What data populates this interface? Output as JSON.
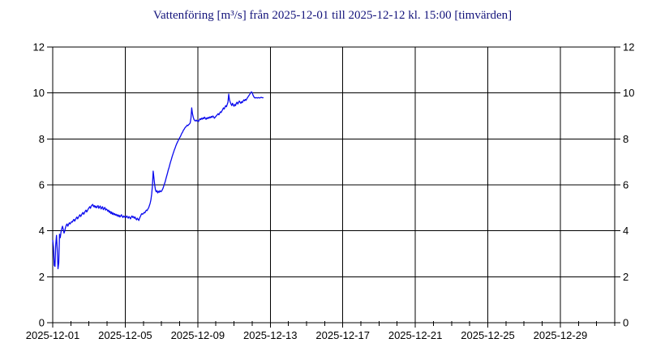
{
  "page": {
    "background": "#ffffff"
  },
  "chart_data": {
    "type": "line",
    "title": "Vattenföring [m³/s] från 2025-12-01 till 2025-12-12 kl. 15:00 [timvärden]",
    "title_color": "#13137b",
    "line_color": "#0b0bee",
    "grid": true,
    "grid_color": "#000000",
    "legend": "none",
    "x_axis": {
      "start_date": "2025-12-01",
      "total_days": 31,
      "major_tick_every_days": 4,
      "minor_tick_every_days": 1,
      "tick_labels": [
        "2025-12-01",
        "2025-12-05",
        "2025-12-09",
        "2025-12-13",
        "2025-12-17",
        "2025-12-21",
        "2025-12-25",
        "2025-12-29"
      ]
    },
    "y_axis": {
      "min": 0,
      "max": 12,
      "tick_step": 2,
      "tick_labels": [
        "0",
        "2",
        "4",
        "6",
        "8",
        "10",
        "12"
      ],
      "label_sides": "both"
    },
    "series": [
      {
        "name": "Vattenföring timvärden",
        "unit": "m³/s",
        "start": "2025-12-01 00:00",
        "end": "2025-12-12 15:00",
        "interval_hours": 1,
        "values": [
          3.6,
          3.3,
          2.5,
          2.45,
          3.4,
          3.8,
          3.2,
          2.35,
          2.6,
          3.85,
          3.7,
          3.95,
          4.1,
          4.2,
          4.05,
          3.9,
          4.0,
          4.15,
          4.25,
          4.3,
          4.2,
          4.28,
          4.35,
          4.3,
          4.35,
          4.4,
          4.38,
          4.45,
          4.5,
          4.42,
          4.48,
          4.55,
          4.6,
          4.52,
          4.58,
          4.65,
          4.7,
          4.62,
          4.68,
          4.75,
          4.8,
          4.72,
          4.78,
          4.85,
          4.9,
          4.82,
          4.88,
          4.95,
          5.0,
          5.05,
          4.98,
          5.08,
          5.12,
          5.15,
          5.05,
          5.1,
          5.02,
          5.08,
          5.0,
          5.05,
          5.1,
          4.98,
          5.04,
          5.08,
          4.95,
          5.0,
          5.05,
          4.92,
          4.98,
          5.02,
          4.9,
          4.95,
          4.92,
          4.85,
          4.9,
          4.8,
          4.85,
          4.75,
          4.82,
          4.72,
          4.78,
          4.7,
          4.75,
          4.68,
          4.72,
          4.65,
          4.7,
          4.62,
          4.68,
          4.6,
          4.65,
          4.7,
          4.62,
          4.58,
          4.65,
          4.6,
          4.62,
          4.58,
          4.65,
          4.6,
          4.55,
          4.62,
          4.58,
          4.52,
          4.6,
          4.65,
          4.58,
          4.62,
          4.55,
          4.6,
          4.52,
          4.48,
          4.55,
          4.5,
          4.45,
          4.55,
          4.62,
          4.7,
          4.75,
          4.72,
          4.75,
          4.8,
          4.78,
          4.85,
          4.9,
          4.88,
          4.95,
          5.0,
          5.1,
          5.2,
          5.35,
          5.6,
          5.95,
          6.6,
          6.3,
          6.0,
          5.78,
          5.7,
          5.75,
          5.65,
          5.72,
          5.68,
          5.75,
          5.7,
          5.72,
          5.78,
          5.85,
          5.95,
          6.05,
          6.15,
          6.28,
          6.4,
          6.52,
          6.65,
          6.75,
          6.88,
          7.0,
          7.1,
          7.22,
          7.32,
          7.42,
          7.52,
          7.6,
          7.7,
          7.78,
          7.85,
          7.92,
          7.98,
          8.05,
          8.1,
          8.18,
          8.25,
          8.3,
          8.38,
          8.42,
          8.48,
          8.52,
          8.55,
          8.6,
          8.58,
          8.62,
          8.65,
          8.7,
          8.9,
          9.35,
          9.1,
          8.95,
          8.85,
          8.8,
          8.78,
          8.82,
          8.78,
          8.8,
          8.76,
          8.82,
          8.88,
          8.84,
          8.9,
          8.86,
          8.92,
          8.88,
          8.95,
          8.9,
          8.85,
          8.92,
          8.88,
          8.94,
          8.9,
          8.96,
          8.92,
          8.98,
          8.94,
          9.0,
          8.96,
          8.9,
          8.94,
          8.98,
          9.02,
          9.06,
          9.1,
          9.05,
          9.12,
          9.18,
          9.15,
          9.22,
          9.28,
          9.35,
          9.3,
          9.38,
          9.45,
          9.4,
          9.5,
          9.6,
          9.95,
          9.7,
          9.6,
          9.52,
          9.45,
          9.55,
          9.48,
          9.42,
          9.5,
          9.45,
          9.55,
          9.6,
          9.52,
          9.58,
          9.65,
          9.6,
          9.55,
          9.62,
          9.58,
          9.65,
          9.7,
          9.66,
          9.72,
          9.68,
          9.75,
          9.8,
          9.85,
          9.9,
          9.95,
          10.0,
          10.05,
          10.02,
          9.92,
          9.85,
          9.8,
          9.78,
          9.8,
          9.79,
          9.78,
          9.8,
          9.79,
          9.78,
          9.8,
          9.81,
          9.8,
          9.79,
          9.8
        ]
      }
    ]
  }
}
